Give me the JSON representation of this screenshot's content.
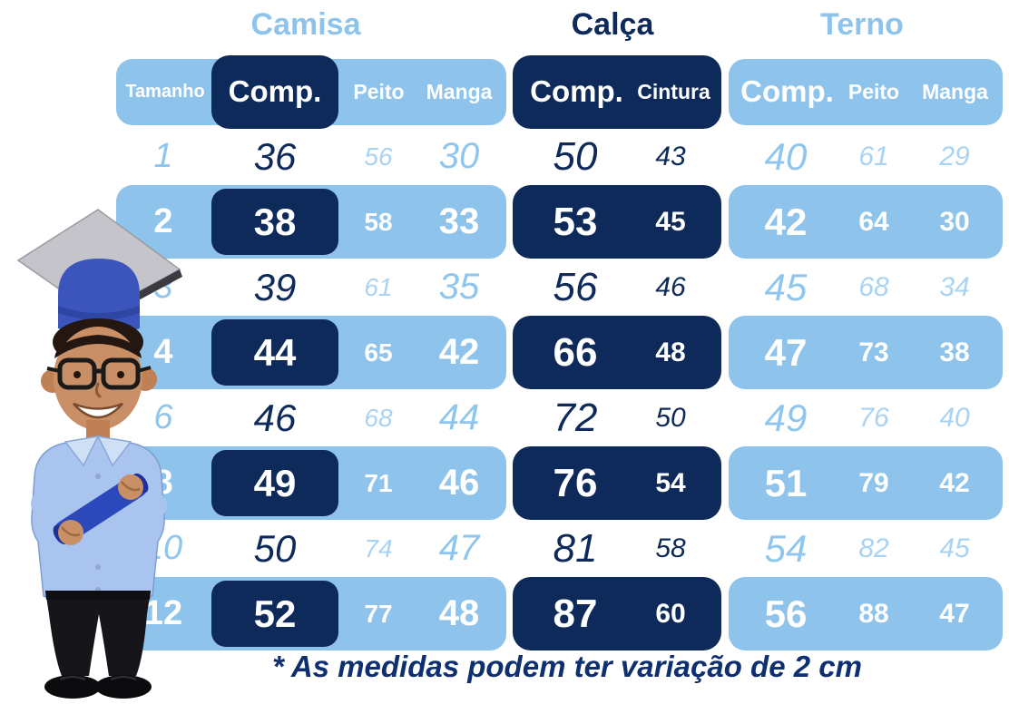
{
  "titles": {
    "camisa": "Camisa",
    "calca": "Calça",
    "terno": "Terno"
  },
  "header": {
    "tamanho": "Tamanho",
    "camisa_comp": "Comp.",
    "camisa_peito": "Peito",
    "camisa_manga": "Manga",
    "calca_comp": "Comp.",
    "calca_cintura": "Cintura",
    "terno_comp": "Comp.",
    "terno_peito": "Peito",
    "terno_manga": "Manga"
  },
  "rows": [
    {
      "size": "1",
      "banded": false,
      "camisa": [
        "36",
        "56",
        "30"
      ],
      "calca": [
        "50",
        "43"
      ],
      "terno": [
        "40",
        "61",
        "29"
      ]
    },
    {
      "size": "2",
      "banded": true,
      "camisa": [
        "38",
        "58",
        "33"
      ],
      "calca": [
        "53",
        "45"
      ],
      "terno": [
        "42",
        "64",
        "30"
      ]
    },
    {
      "size": "3",
      "banded": false,
      "camisa": [
        "39",
        "61",
        "35"
      ],
      "calca": [
        "56",
        "46"
      ],
      "terno": [
        "45",
        "68",
        "34"
      ]
    },
    {
      "size": "4",
      "banded": true,
      "camisa": [
        "44",
        "65",
        "42"
      ],
      "calca": [
        "66",
        "48"
      ],
      "terno": [
        "47",
        "73",
        "38"
      ]
    },
    {
      "size": "6",
      "banded": false,
      "camisa": [
        "46",
        "68",
        "44"
      ],
      "calca": [
        "72",
        "50"
      ],
      "terno": [
        "49",
        "76",
        "40"
      ]
    },
    {
      "size": "8",
      "banded": true,
      "camisa": [
        "49",
        "71",
        "46"
      ],
      "calca": [
        "76",
        "54"
      ],
      "terno": [
        "51",
        "79",
        "42"
      ]
    },
    {
      "size": "10",
      "banded": false,
      "camisa": [
        "50",
        "74",
        "47"
      ],
      "calca": [
        "81",
        "58"
      ],
      "terno": [
        "54",
        "82",
        "45"
      ]
    },
    {
      "size": "12",
      "banded": true,
      "camisa": [
        "52",
        "77",
        "48"
      ],
      "calca": [
        "87",
        "60"
      ],
      "terno": [
        "56",
        "88",
        "47"
      ]
    }
  ],
  "note": "* As medidas podem ter variação de 2 cm",
  "colors": {
    "light_blue": "#8EC4EC",
    "navy": "#0D2A5A",
    "value_blue": "#8FC6EE",
    "value_blue_light": "#A9D3F2",
    "note_navy": "#0E3070"
  },
  "chart_data": {
    "type": "table",
    "groups": [
      "Camisa",
      "Calça",
      "Terno"
    ],
    "columns": [
      "Tamanho",
      "Camisa Comp.",
      "Camisa Peito",
      "Camisa Manga",
      "Calça Comp.",
      "Calça Cintura",
      "Terno Comp.",
      "Terno Peito",
      "Terno Manga"
    ],
    "rows": [
      [
        1,
        36,
        56,
        30,
        50,
        43,
        40,
        61,
        29
      ],
      [
        2,
        38,
        58,
        33,
        53,
        45,
        42,
        64,
        30
      ],
      [
        3,
        39,
        61,
        35,
        56,
        46,
        45,
        68,
        34
      ],
      [
        4,
        44,
        65,
        42,
        66,
        48,
        47,
        73,
        38
      ],
      [
        6,
        46,
        68,
        44,
        72,
        50,
        49,
        76,
        40
      ],
      [
        8,
        49,
        71,
        46,
        76,
        54,
        51,
        79,
        42
      ],
      [
        10,
        50,
        74,
        47,
        81,
        58,
        54,
        82,
        45
      ],
      [
        12,
        52,
        77,
        48,
        87,
        60,
        56,
        88,
        47
      ]
    ],
    "note": "* As medidas podem ter variação de 2 cm"
  }
}
